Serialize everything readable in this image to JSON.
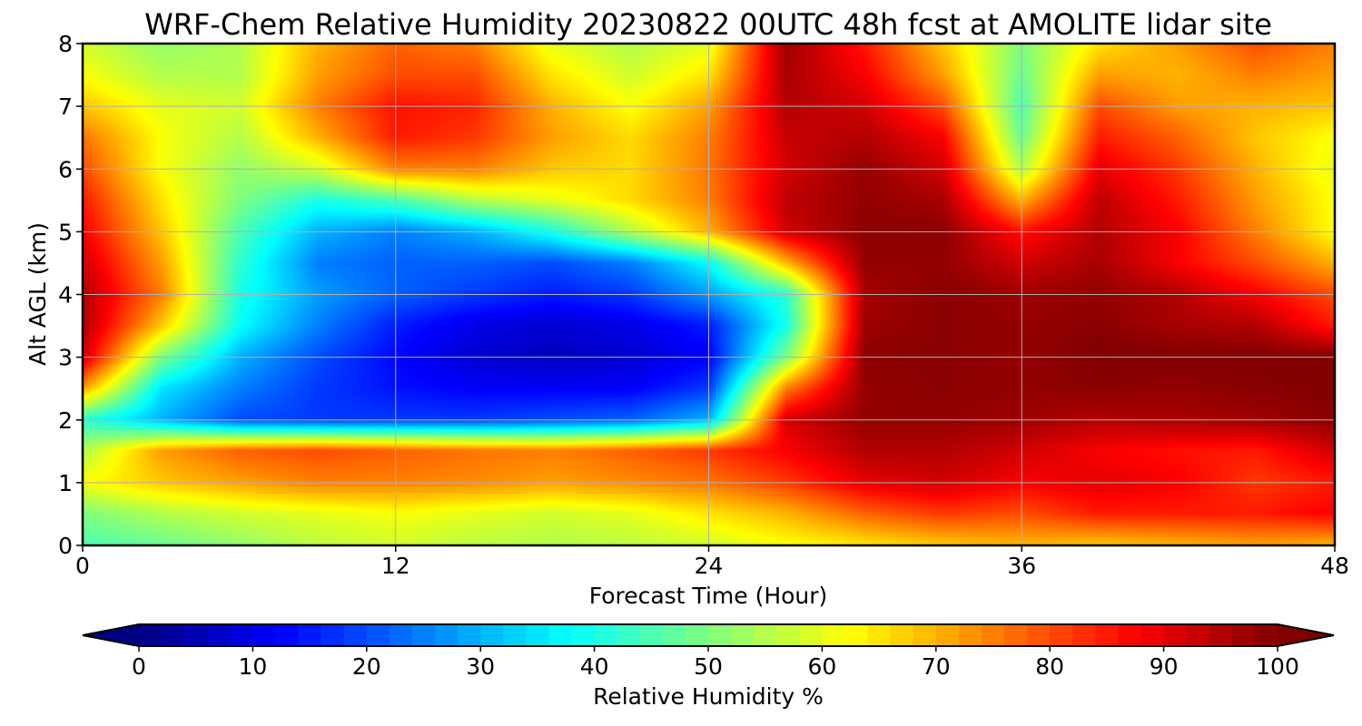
{
  "chart_data": {
    "type": "heatmap",
    "title": "WRF-Chem Relative Humidity 20230822 00UTC 48h fcst at AMOLITE lidar site",
    "xlabel": "Forecast Time (Hour)",
    "ylabel": "Alt AGL (km)",
    "xlim": [
      0,
      48
    ],
    "ylim": [
      0,
      8
    ],
    "x_ticks": [
      0,
      12,
      24,
      36,
      48
    ],
    "y_ticks": [
      0,
      1,
      2,
      3,
      4,
      5,
      6,
      7,
      8
    ],
    "grid": true,
    "x": [
      0,
      3,
      6,
      9,
      12,
      15,
      18,
      21,
      24,
      27,
      30,
      33,
      36,
      39,
      42,
      45,
      48
    ],
    "y": [
      0,
      0.5,
      1,
      1.5,
      2,
      2.5,
      3,
      3.5,
      4,
      4.5,
      5,
      5.5,
      6,
      6.5,
      7,
      7.5,
      8
    ],
    "z": [
      [
        45,
        48,
        52,
        56,
        58,
        56,
        55,
        56,
        58,
        62,
        65,
        68,
        70,
        68,
        70,
        72,
        70
      ],
      [
        50,
        55,
        58,
        60,
        62,
        60,
        58,
        60,
        65,
        70,
        78,
        82,
        80,
        85,
        85,
        85,
        88
      ],
      [
        62,
        68,
        72,
        75,
        75,
        74,
        72,
        74,
        76,
        82,
        90,
        92,
        88,
        90,
        88,
        82,
        85
      ],
      [
        55,
        72,
        78,
        80,
        78,
        76,
        75,
        78,
        82,
        88,
        95,
        95,
        92,
        88,
        86,
        85,
        92
      ],
      [
        42,
        30,
        20,
        18,
        18,
        18,
        20,
        22,
        30,
        92,
        98,
        98,
        97,
        95,
        96,
        97,
        99
      ],
      [
        72,
        35,
        25,
        18,
        14,
        12,
        12,
        12,
        18,
        75,
        98,
        99,
        98,
        99,
        98,
        99,
        100
      ],
      [
        92,
        50,
        30,
        20,
        13,
        8,
        6,
        8,
        12,
        50,
        99,
        99,
        98,
        100,
        100,
        100,
        100
      ],
      [
        95,
        68,
        38,
        25,
        15,
        10,
        8,
        10,
        15,
        40,
        97,
        99,
        98,
        99,
        96,
        95,
        85
      ],
      [
        95,
        75,
        40,
        28,
        22,
        18,
        15,
        18,
        28,
        42,
        96,
        99,
        97,
        98,
        95,
        88,
        80
      ],
      [
        92,
        72,
        42,
        25,
        22,
        22,
        20,
        25,
        38,
        70,
        98,
        98,
        92,
        96,
        88,
        80,
        70
      ],
      [
        88,
        68,
        45,
        30,
        25,
        30,
        40,
        55,
        70,
        92,
        99,
        99,
        86,
        95,
        88,
        75,
        62
      ],
      [
        85,
        65,
        50,
        40,
        45,
        55,
        60,
        66,
        75,
        94,
        98,
        96,
        70,
        94,
        85,
        72,
        62
      ],
      [
        80,
        62,
        52,
        58,
        75,
        75,
        68,
        66,
        76,
        92,
        98,
        92,
        55,
        90,
        82,
        70,
        60
      ],
      [
        76,
        62,
        55,
        70,
        85,
        82,
        72,
        66,
        75,
        93,
        95,
        88,
        48,
        85,
        78,
        68,
        62
      ],
      [
        68,
        60,
        58,
        75,
        86,
        84,
        70,
        62,
        72,
        95,
        92,
        80,
        45,
        80,
        72,
        70,
        68
      ],
      [
        62,
        55,
        55,
        72,
        80,
        80,
        65,
        58,
        65,
        96,
        88,
        72,
        48,
        72,
        70,
        75,
        72
      ],
      [
        58,
        52,
        55,
        70,
        78,
        75,
        60,
        55,
        60,
        97,
        85,
        68,
        50,
        65,
        72,
        80,
        75
      ]
    ],
    "colorbar": {
      "label": "Relative Humidity %",
      "min": 0,
      "max": 100,
      "ticks": [
        0,
        10,
        20,
        30,
        40,
        50,
        60,
        70,
        80,
        90,
        100
      ],
      "colormap": "jet",
      "extend": "both"
    }
  }
}
